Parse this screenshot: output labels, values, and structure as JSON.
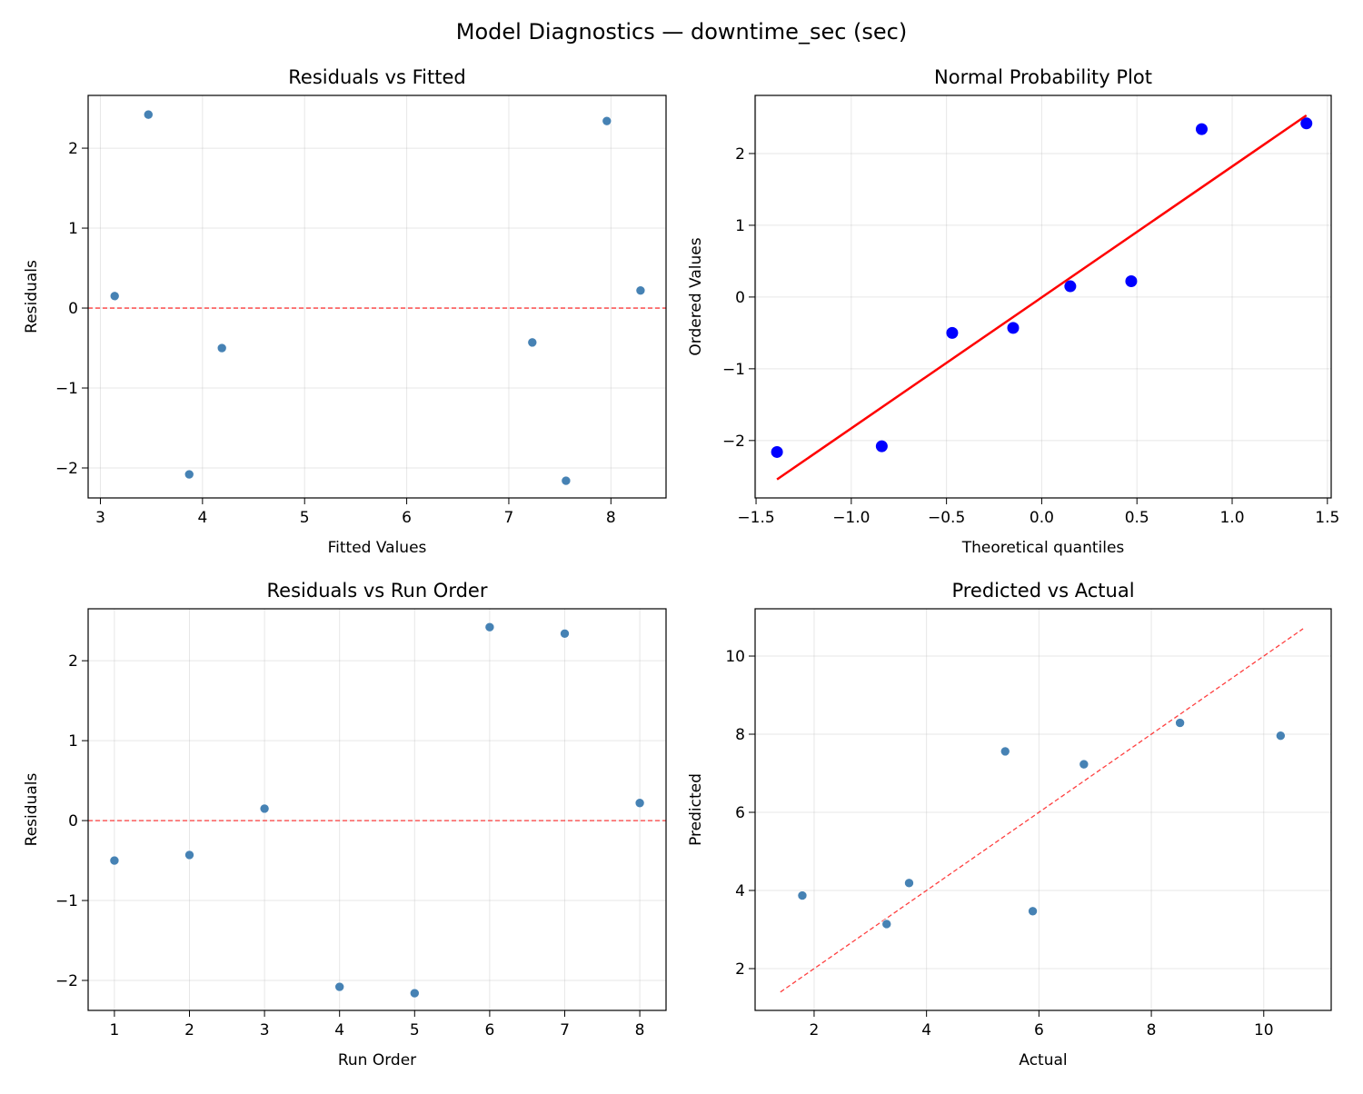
{
  "figure_title": "Model Diagnostics — downtime_sec (sec)",
  "colors": {
    "point": "#4682b4",
    "qq_point": "#0000ff",
    "qq_line": "#ff0000",
    "ref_line": "#ff0000",
    "grid": "#b0b0b0"
  },
  "chart_data": [
    {
      "type": "scatter",
      "title": "Residuals vs Fitted",
      "xlabel": "Fitted Values",
      "ylabel": "Residuals",
      "xlim": [
        2.88,
        8.54
      ],
      "ylim": [
        -2.375,
        2.66
      ],
      "xticks": [
        3,
        4,
        5,
        6,
        7,
        8
      ],
      "yticks": [
        -2,
        -1,
        0,
        1,
        2
      ],
      "grid": true,
      "x": [
        3.14,
        3.47,
        3.87,
        4.19,
        7.23,
        7.56,
        7.96,
        8.29
      ],
      "y": [
        0.15,
        2.42,
        -2.08,
        -0.5,
        -0.43,
        -2.16,
        2.34,
        0.22
      ],
      "reference_line": {
        "type": "horizontal",
        "y": 0,
        "style": "dashed"
      }
    },
    {
      "type": "scatter",
      "title": "Normal Probability Plot",
      "xlabel": "Theoretical quantiles",
      "ylabel": "Ordered Values",
      "xlim": [
        -1.505,
        1.52
      ],
      "ylim": [
        -2.8,
        2.81
      ],
      "xticks": [
        -1.5,
        -1.0,
        -0.5,
        0.0,
        0.5,
        1.0,
        1.5
      ],
      "yticks": [
        -2,
        -1,
        0,
        1,
        2
      ],
      "grid": true,
      "x": [
        -1.39,
        -0.84,
        -0.47,
        -0.15,
        0.15,
        0.47,
        0.84,
        1.39
      ],
      "y": [
        -2.16,
        -2.08,
        -0.5,
        -0.43,
        0.15,
        0.22,
        2.34,
        2.42
      ],
      "fit_line": {
        "slope": 1.825,
        "intercept": -0.005,
        "style": "solid"
      }
    },
    {
      "type": "scatter",
      "title": "Residuals vs Run Order",
      "xlabel": "Run Order",
      "ylabel": "Residuals",
      "xlim": [
        0.65,
        8.35
      ],
      "ylim": [
        -2.375,
        2.65
      ],
      "xticks": [
        1,
        2,
        3,
        4,
        5,
        6,
        7,
        8
      ],
      "yticks": [
        -2,
        -1,
        0,
        1,
        2
      ],
      "grid": true,
      "x": [
        1,
        2,
        3,
        4,
        5,
        6,
        7,
        8
      ],
      "y": [
        -0.5,
        -0.43,
        0.15,
        -2.08,
        -2.16,
        2.42,
        2.34,
        0.22
      ],
      "reference_line": {
        "type": "horizontal",
        "y": 0,
        "style": "dashed"
      }
    },
    {
      "type": "scatter",
      "title": "Predicted vs Actual",
      "xlabel": "Actual",
      "ylabel": "Predicted",
      "xlim": [
        0.95,
        11.2
      ],
      "ylim": [
        0.93,
        11.21
      ],
      "xticks": [
        2,
        4,
        6,
        8,
        10
      ],
      "yticks": [
        2,
        4,
        6,
        8,
        10
      ],
      "grid": true,
      "x": [
        3.69,
        6.8,
        3.29,
        1.79,
        5.4,
        5.89,
        10.3,
        8.51
      ],
      "y": [
        4.19,
        7.23,
        3.14,
        3.87,
        7.56,
        3.47,
        7.96,
        8.29
      ],
      "reference_line": {
        "type": "identity",
        "from": 1.4,
        "to": 10.7,
        "style": "dashed"
      }
    }
  ]
}
